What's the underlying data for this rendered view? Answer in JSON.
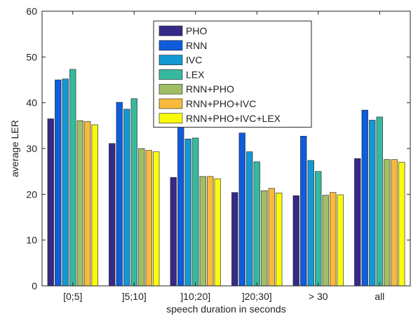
{
  "chart_data": {
    "type": "bar",
    "title": "",
    "xlabel": "speech duration in seconds",
    "ylabel": "average LER",
    "ylim": [
      0,
      60
    ],
    "yticks": [
      0,
      10,
      20,
      30,
      40,
      50,
      60
    ],
    "grid": false,
    "legend_position": "top-center",
    "categories": [
      "[0;5]",
      "]5;10]",
      "]10;20]",
      "]20;30]",
      "> 30",
      "all"
    ],
    "series": [
      {
        "name": "PHO",
        "color": "#352a87",
        "values": [
          36.5,
          31.1,
          23.7,
          20.4,
          19.7,
          27.8
        ]
      },
      {
        "name": "RNN",
        "color": "#0f5cdd",
        "values": [
          45.0,
          40.1,
          35.3,
          33.4,
          32.7,
          38.4
        ]
      },
      {
        "name": "IVC",
        "color": "#1498d4",
        "values": [
          45.2,
          38.6,
          32.1,
          29.3,
          27.4,
          36.2
        ]
      },
      {
        "name": "LEX",
        "color": "#36b99f",
        "values": [
          47.3,
          40.9,
          32.3,
          27.1,
          25.0,
          36.9
        ]
      },
      {
        "name": "RNN+PHO",
        "color": "#a1be65",
        "values": [
          36.1,
          30.0,
          23.9,
          20.8,
          19.8,
          27.6
        ]
      },
      {
        "name": "RNN+PHO+IVC",
        "color": "#f8ba3d",
        "values": [
          35.9,
          29.6,
          23.9,
          21.3,
          20.4,
          27.6
        ]
      },
      {
        "name": "RNN+PHO+IVC+LEX",
        "color": "#f9fb0e",
        "values": [
          35.2,
          29.3,
          23.4,
          20.3,
          19.9,
          27.0
        ]
      }
    ]
  }
}
